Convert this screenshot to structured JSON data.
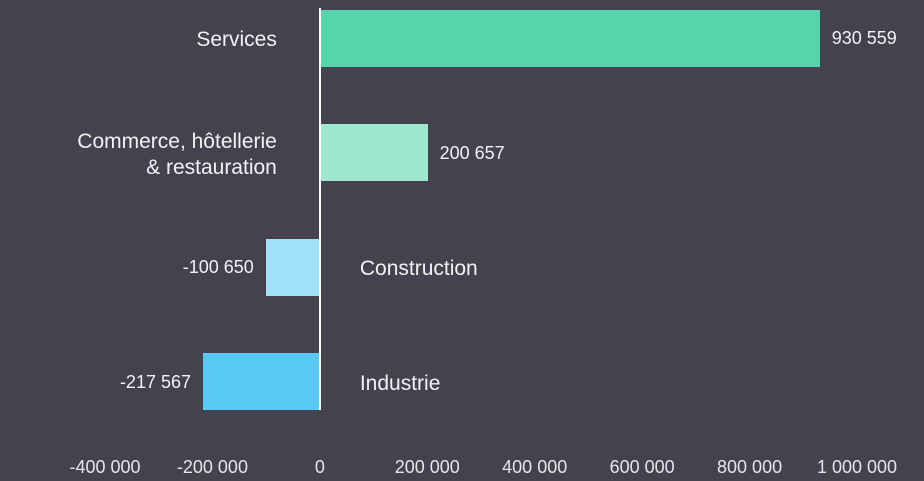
{
  "chart_data": {
    "type": "bar",
    "orientation": "horizontal",
    "categories": [
      "Services",
      "Commerce, hôtellerie\n& restauration",
      "Construction",
      "Industrie"
    ],
    "values": [
      930559,
      200657,
      -100650,
      -217567
    ],
    "value_labels": [
      "930 559",
      "200 657",
      "-100 650",
      "-217 567"
    ],
    "colors": [
      "#57d4aa",
      "#9fe7cd",
      "#a0e1f8",
      "#5ac8f5"
    ],
    "xlim": [
      -400000,
      1000000
    ],
    "xticks": [
      {
        "value": -400000,
        "label": "-400 000"
      },
      {
        "value": -200000,
        "label": "-200 000"
      },
      0,
      {
        "value": 200000,
        "label": "200 000"
      },
      {
        "value": 400000,
        "label": "400 000"
      },
      {
        "value": 600000,
        "label": "600 000"
      },
      {
        "value": 800000,
        "label": "800 000"
      },
      {
        "value": 1000000,
        "label": "1 000 000"
      }
    ]
  }
}
